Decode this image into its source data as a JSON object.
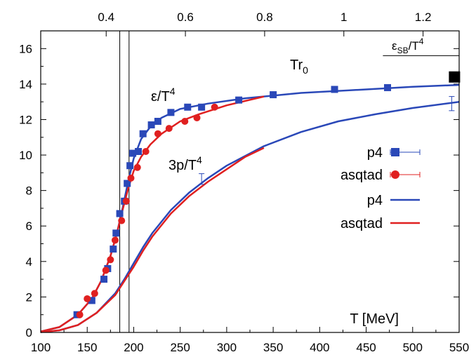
{
  "chart_data": {
    "type": "line",
    "title": "",
    "xlabel": "T [MeV]",
    "ylabel": "",
    "xlim": [
      100,
      550
    ],
    "ylim": [
      0,
      17
    ],
    "x_ticks": [
      100,
      150,
      200,
      250,
      300,
      350,
      400,
      450,
      500,
      550
    ],
    "y_ticks": [
      0,
      2,
      4,
      6,
      8,
      10,
      12,
      14,
      16
    ],
    "top_axis": {
      "label": "Tr0",
      "label_main": "Tr",
      "label_sub": "0",
      "ticks": [
        0.4,
        0.6,
        0.8,
        1,
        1.2
      ],
      "tick_labels": [
        "0.4",
        "0.6",
        "0.8",
        "1",
        "1.2"
      ],
      "t_per_unit": 426
    },
    "vertical_lines": [
      185,
      195
    ],
    "sb_limit": {
      "value": 15.6,
      "x_range": [
        468,
        550
      ],
      "label_main": "ε",
      "label_sub": "SB",
      "label_rest": "/T",
      "label_sup": "4"
    },
    "annotations": {
      "energy": {
        "main": "ε/T",
        "sup": "4"
      },
      "pressure": {
        "main": "3p/T",
        "sup": "4"
      }
    },
    "legend": {
      "position": "center-right",
      "entries": [
        {
          "label": "p4",
          "style": "points",
          "color": "#2a48b8",
          "marker": "square"
        },
        {
          "label": "asqtad",
          "style": "points",
          "color": "#e02020",
          "marker": "circle"
        },
        {
          "label": "p4",
          "style": "line",
          "color": "#2a48b8"
        },
        {
          "label": "asqtad",
          "style": "line",
          "color": "#e02020"
        }
      ]
    },
    "series": [
      {
        "name": "p4 ε/T^4 data",
        "kind": "points",
        "marker": "square",
        "color": "#2a48b8",
        "x": [
          139,
          155,
          168,
          172,
          178,
          181,
          185,
          190,
          193,
          196,
          199,
          205,
          210,
          219,
          226,
          240,
          258,
          273,
          313,
          350,
          416,
          473
        ],
        "y": [
          1.0,
          1.8,
          3.0,
          3.6,
          4.7,
          5.6,
          6.7,
          7.4,
          8.4,
          9.4,
          10.1,
          10.2,
          11.2,
          11.7,
          11.9,
          12.4,
          12.7,
          12.7,
          13.1,
          13.4,
          13.7,
          13.8
        ]
      },
      {
        "name": "asqtad ε/T^4 data",
        "kind": "points",
        "marker": "circle",
        "color": "#e02020",
        "x": [
          142,
          150,
          158,
          170,
          175,
          180,
          187,
          192,
          197,
          204,
          213,
          226,
          238,
          255,
          268,
          287
        ],
        "y": [
          1.0,
          1.9,
          2.2,
          3.5,
          4.1,
          5.2,
          6.3,
          7.4,
          8.7,
          9.3,
          10.2,
          11.2,
          11.5,
          11.9,
          12.1,
          12.7
        ]
      },
      {
        "name": "p4 ε/T^4 fit",
        "kind": "line",
        "color": "#2a48b8",
        "x": [
          100,
          120,
          140,
          155,
          165,
          175,
          182,
          188,
          194,
          200,
          208,
          218,
          230,
          250,
          280,
          320,
          380,
          450,
          500,
          550
        ],
        "y": [
          0.05,
          0.3,
          1.0,
          1.9,
          2.9,
          4.3,
          5.6,
          7.0,
          8.5,
          9.8,
          10.9,
          11.6,
          12.1,
          12.6,
          12.9,
          13.2,
          13.5,
          13.7,
          13.85,
          13.95
        ]
      },
      {
        "name": "asqtad ε/T^4 fit",
        "kind": "line",
        "color": "#e02020",
        "x": [
          100,
          120,
          140,
          155,
          165,
          175,
          182,
          188,
          194,
          200,
          208,
          218,
          230,
          250,
          270,
          300,
          340
        ],
        "y": [
          0.05,
          0.3,
          1.0,
          1.9,
          2.9,
          4.3,
          5.6,
          6.9,
          8.1,
          9.1,
          9.9,
          10.6,
          11.2,
          11.9,
          12.3,
          12.8,
          13.3
        ]
      },
      {
        "name": "p4 3p/T^4 fit",
        "kind": "line",
        "color": "#2a48b8",
        "x": [
          100,
          120,
          140,
          160,
          180,
          190,
          200,
          210,
          220,
          240,
          260,
          280,
          300,
          340,
          380,
          420,
          460,
          500,
          550
        ],
        "y": [
          0.02,
          0.12,
          0.42,
          1.1,
          2.2,
          3.0,
          3.9,
          4.8,
          5.6,
          6.9,
          7.9,
          8.7,
          9.4,
          10.5,
          11.3,
          11.9,
          12.3,
          12.65,
          13.0
        ]
      },
      {
        "name": "asqtad 3p/T^4 fit",
        "kind": "line",
        "color": "#e02020",
        "x": [
          100,
          120,
          140,
          160,
          180,
          190,
          200,
          210,
          220,
          240,
          260,
          280,
          300,
          320,
          340
        ],
        "y": [
          0.02,
          0.12,
          0.42,
          1.1,
          2.1,
          2.9,
          3.7,
          4.6,
          5.4,
          6.7,
          7.7,
          8.5,
          9.2,
          9.9,
          10.4
        ]
      },
      {
        "name": "error markers",
        "kind": "errorbars",
        "color": "#2a48b8",
        "x": [
          273,
          542
        ],
        "y": [
          8.65,
          12.9
        ],
        "err": [
          0.3,
          0.4
        ]
      },
      {
        "name": "SB ε/T^4 marker",
        "kind": "points",
        "marker": "filled-square-large",
        "color": "#000000",
        "x": [
          545
        ],
        "y": [
          14.4
        ]
      }
    ]
  }
}
